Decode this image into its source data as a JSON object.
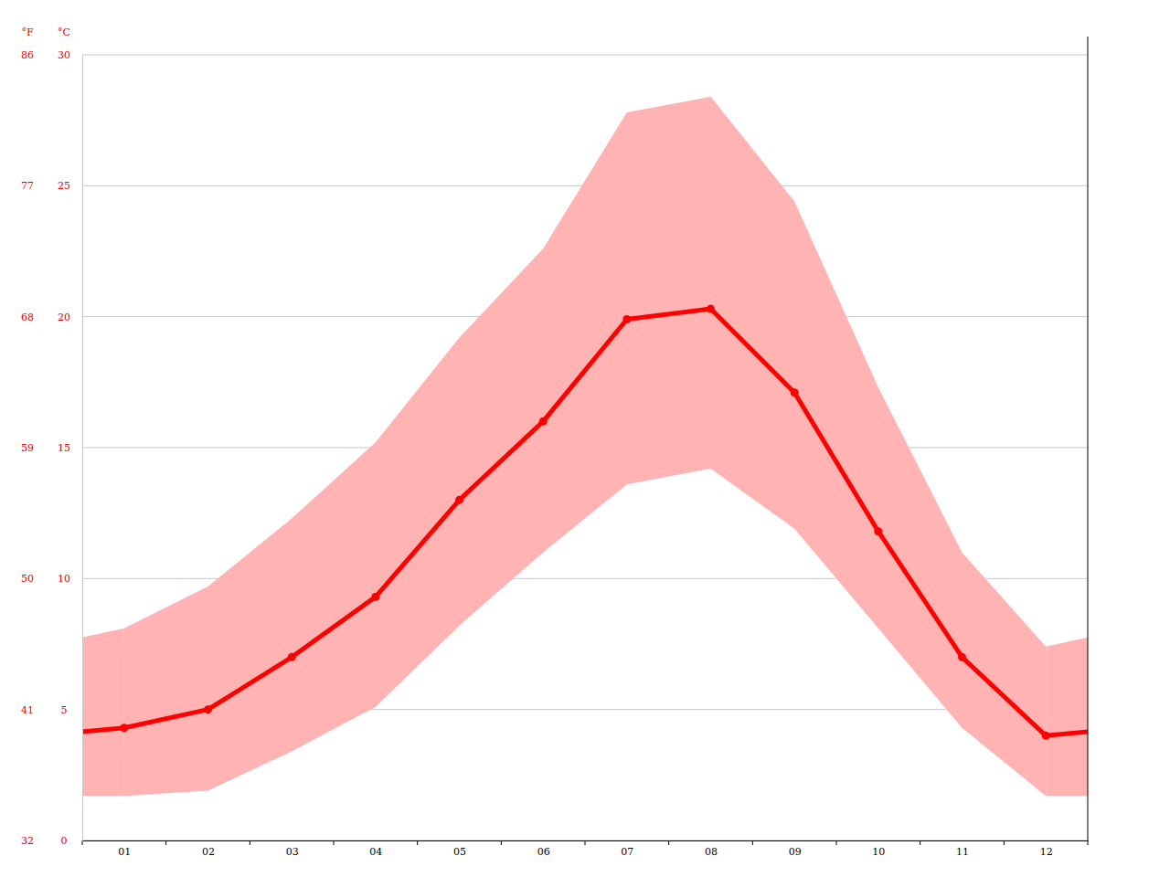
{
  "chart_data": {
    "type": "line",
    "categories": [
      "01",
      "02",
      "03",
      "04",
      "05",
      "06",
      "07",
      "08",
      "09",
      "10",
      "11",
      "12"
    ],
    "y_label": "°C",
    "y2_label": "°F",
    "ylim": [
      0,
      30
    ],
    "yticks": [
      0,
      5,
      10,
      15,
      20,
      25,
      30
    ],
    "y2lim": [
      32,
      86
    ],
    "y2ticks": [
      32,
      41,
      50,
      59,
      68,
      77,
      86
    ],
    "grid": true,
    "series": [
      {
        "type": "area",
        "color": "#ffb3b3",
        "values": [
          8.1,
          9.7,
          12.3,
          15.2,
          19.2,
          22.6,
          27.8,
          28.4,
          24.4,
          17.3,
          11.0,
          7.4
        ],
        "low": [
          1.7,
          1.9,
          3.4,
          5.1,
          8.2,
          11.0,
          13.6,
          14.2,
          11.9,
          8.1,
          4.3,
          1.7
        ]
      },
      {
        "type": "line",
        "color": "#ff0000",
        "marker": "circle",
        "values": [
          4.3,
          5.0,
          7.0,
          9.3,
          13.0,
          16.0,
          19.9,
          20.3,
          17.1,
          11.8,
          7.0,
          4.0
        ]
      }
    ]
  }
}
